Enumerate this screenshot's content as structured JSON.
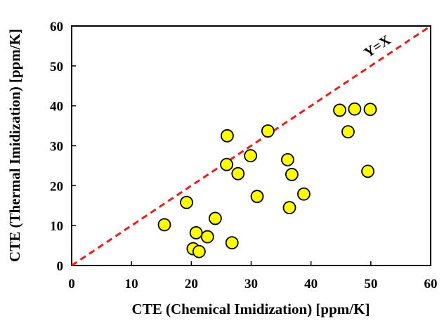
{
  "chart_data": {
    "type": "scatter",
    "title": "",
    "xlabel": "CTE (Chemical Imidization) [ppm/K]",
    "ylabel": "CTE (Thermal Imidization) [ppm/K]",
    "xlim": [
      0,
      60
    ],
    "ylim": [
      0,
      60
    ],
    "xticks": [
      "0",
      "10",
      "20",
      "30",
      "40",
      "50",
      "60"
    ],
    "yticks": [
      "0",
      "10",
      "20",
      "30",
      "40",
      "50",
      "60"
    ],
    "grid": false,
    "legend": "none",
    "reference_line": {
      "label": "Y=X",
      "from": [
        0,
        0
      ],
      "to": [
        60,
        60
      ],
      "color": "#e8201a",
      "style": "dashed"
    },
    "marker": {
      "fill": "#ffff00",
      "stroke": "#000000"
    },
    "points": [
      {
        "x": 15.5,
        "y": 10.2
      },
      {
        "x": 19.2,
        "y": 15.8
      },
      {
        "x": 20.3,
        "y": 4.2
      },
      {
        "x": 20.8,
        "y": 8.2
      },
      {
        "x": 21.3,
        "y": 3.5
      },
      {
        "x": 22.7,
        "y": 7.2
      },
      {
        "x": 24.0,
        "y": 11.8
      },
      {
        "x": 25.9,
        "y": 25.3
      },
      {
        "x": 26.0,
        "y": 32.5
      },
      {
        "x": 26.8,
        "y": 5.7
      },
      {
        "x": 27.8,
        "y": 23.0
      },
      {
        "x": 29.9,
        "y": 27.5
      },
      {
        "x": 31.0,
        "y": 17.3
      },
      {
        "x": 32.8,
        "y": 33.7
      },
      {
        "x": 36.1,
        "y": 26.5
      },
      {
        "x": 36.4,
        "y": 14.5
      },
      {
        "x": 36.8,
        "y": 22.8
      },
      {
        "x": 38.8,
        "y": 17.9
      },
      {
        "x": 44.8,
        "y": 38.9
      },
      {
        "x": 46.2,
        "y": 33.5
      },
      {
        "x": 47.3,
        "y": 39.2
      },
      {
        "x": 49.5,
        "y": 23.6
      },
      {
        "x": 49.9,
        "y": 39.1
      }
    ]
  }
}
